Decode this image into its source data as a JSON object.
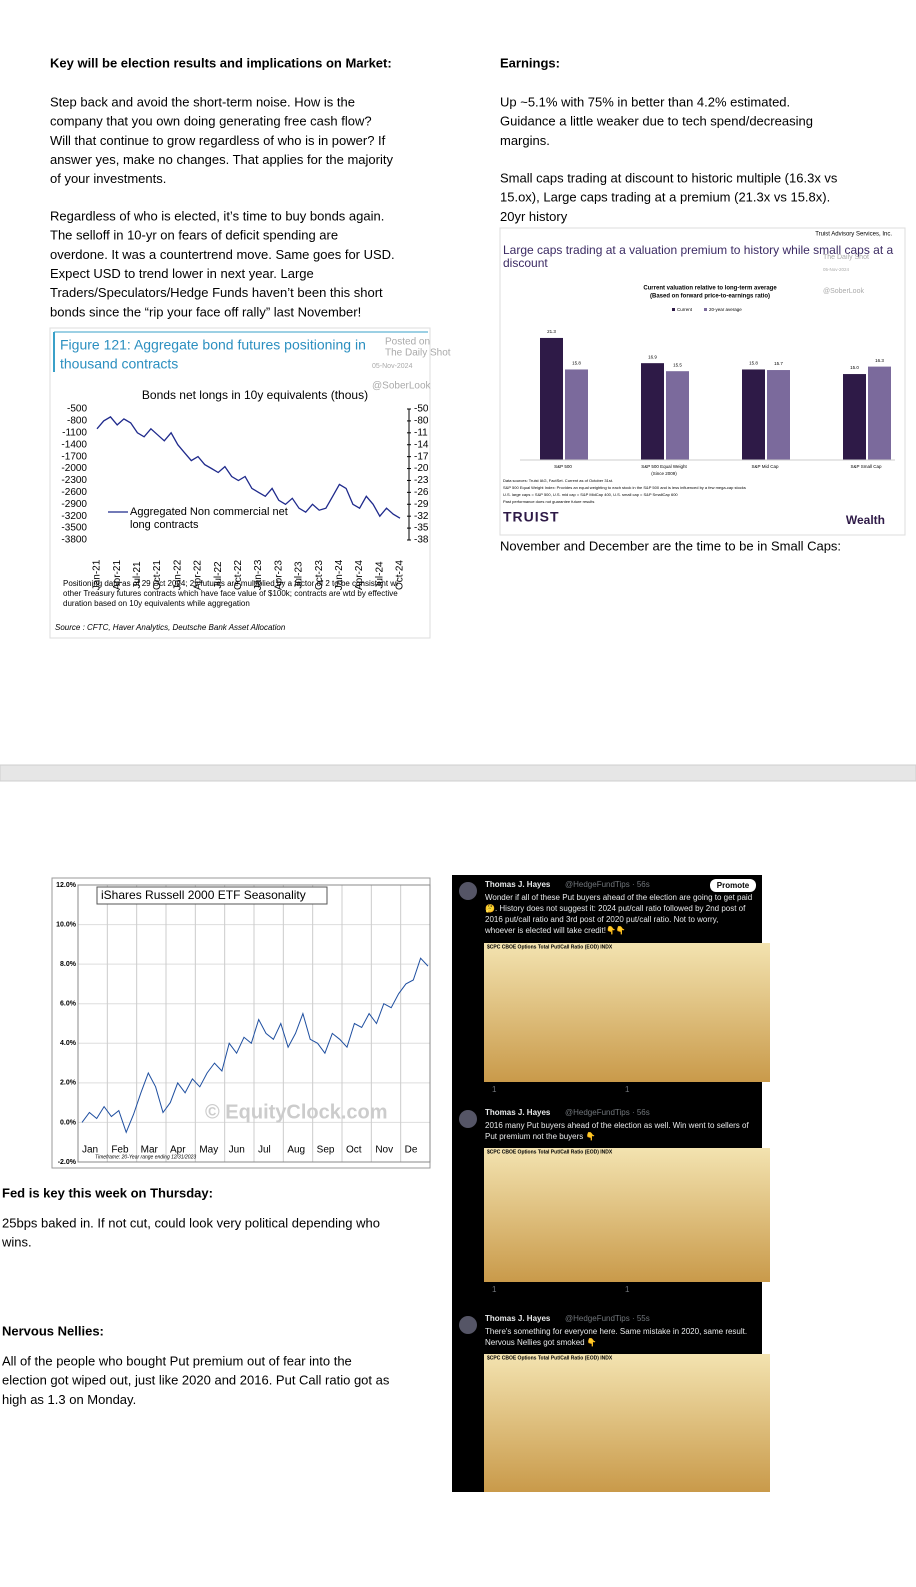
{
  "left_top": {
    "heading": "Key will be election results and implications on Market:",
    "paragraphs": [
      [
        "Step back and avoid the short-term noise.  How is the",
        "company that you own doing generating free cash flow?",
        "Will that continue to grow regardless of who is in power? If",
        "answer yes, make no changes.  That applies for the majority",
        "of your investments."
      ],
      [
        "Regardless of who is elected, it’s time to buy bonds again.",
        "The selloff in 10-yr on fears of deficit spending are",
        "overdone.  It was a countertrend move.  Same goes for USD.",
        "Expect USD to trend lower in next year.  Large",
        "Traders/Speculators/Hedge Funds haven’t been this short",
        "bonds since the “rip your face off rally” last November!"
      ]
    ]
  },
  "right_top": {
    "heading": "Earnings:",
    "paragraphs": [
      [
        "Up ~5.1% with 75% in better than 4.2% estimated.",
        "Guidance a little weaker due to tech spend/decreasing",
        "margins."
      ],
      [
        "Small caps trading at discount to historic multiple (16.3x vs",
        "15.ox), Large caps trading at a premium (21.3x vs 15.8x).",
        "20yr history"
      ]
    ],
    "caption": "November and December are the time to be in Small Caps:"
  },
  "bond_figure": {
    "title_lines": [
      "Figure 121: Aggregate bond futures positioning in",
      "thousand contracts"
    ],
    "watermark": [
      "Posted on",
      "The Daily Shot",
      "05-Nov-2024",
      "@SoberLook"
    ],
    "chart": {
      "type": "line",
      "title": "Bonds net longs in 10y equivalents (thous)",
      "ylim": [
        -3800,
        -500
      ],
      "yticks": [
        -500,
        -800,
        -1100,
        -1400,
        -1700,
        -2000,
        -2300,
        -2600,
        -2900,
        -3200,
        -3500,
        -3800
      ],
      "right_tick_labels": [
        "-50",
        "-80",
        "-11",
        "-14",
        "-17",
        "-20",
        "-23",
        "-26",
        "-29",
        "-32",
        "-35",
        "-38"
      ],
      "x_labels": [
        "Jan-21",
        "Apr-21",
        "Jul-21",
        "Oct-21",
        "Jan-22",
        "Apr-22",
        "Jul-22",
        "Oct-22",
        "Jan-23",
        "Apr-23",
        "Jul-23",
        "Oct-23",
        "Jan-24",
        "Apr-24",
        "Jul-24",
        "Oct-24"
      ],
      "legend_lines": [
        "Aggregated Non commercial net",
        "long contracts"
      ],
      "color": "#1f2a8c",
      "values": [
        -1000,
        -800,
        -700,
        -900,
        -750,
        -850,
        -1100,
        -1200,
        -1000,
        -1150,
        -1300,
        -1100,
        -1400,
        -1600,
        -1800,
        -1700,
        -1900,
        -2000,
        -2100,
        -1950,
        -2200,
        -2300,
        -2200,
        -2500,
        -2600,
        -2700,
        -2500,
        -2800,
        -2900,
        -2750,
        -3000,
        -3100,
        -2900,
        -3050,
        -3000,
        -2700,
        -2400,
        -2500,
        -2900,
        -3000,
        -2700,
        -2900,
        -3200,
        -3000,
        -3150,
        -3250
      ]
    },
    "notes": [
      "Positioning data as of 29 Oct 2024; 2y futures are multiplied by a factor of 2 to be consistent wi",
      "other Treasury futures contracts which have face value of $100k; contracts are wtd by effective",
      "duration based on 10y equivalents while aggregation"
    ],
    "source": "Source : CFTC, Haver Analytics, Deutsche Bank Asset Allocation"
  },
  "valuation_figure": {
    "header": "Truist Advisory Services, Inc.",
    "title_lines": [
      "Large caps trading at a valuation premium to history while small caps at a",
      "discount"
    ],
    "watermark": [
      "The Daily Shot",
      "05-Nov-2024",
      "@SoberLook"
    ],
    "chart": {
      "type": "bar",
      "subtitle_lines": [
        "Current valuation relative to long-term average",
        "(Based on forward price-to-earnings ratio)"
      ],
      "categories": [
        "S&P 500",
        "S&P 500 Equal Weight",
        "S&P Mid Cap",
        "S&P Small Cap"
      ],
      "category_notes": [
        null,
        "(Since 2009)",
        null,
        null
      ],
      "series": [
        {
          "name": "Current",
          "color": "#2e1a47",
          "values": [
            21.3,
            16.9,
            15.8,
            15.0
          ],
          "value_labels": [
            "21.3",
            "16.9",
            "15.8",
            "15.0"
          ]
        },
        {
          "name": "20-year average",
          "color": "#7b6a9c",
          "values": [
            15.8,
            15.5,
            15.7,
            16.3
          ],
          "value_labels": [
            "15.8",
            "15.5",
            "15.7",
            "16.3"
          ]
        }
      ]
    },
    "footnotes": [
      "Data sources: Truist IAG, FactSet. Current as of October 31st.",
      "S&P 500 Equal Weight Index: Provides an equal weighting to each stock in the S&P 500 and is less influenced by a few mega-cap stocks",
      "U.S. large caps = S&P 500, U.S. mid cap = S&P MidCap 400, U.S. small cap = S&P SmallCap 600",
      "Past performance does not guarantee future results"
    ],
    "brand": "TRUIST",
    "brand_right": "Wealth"
  },
  "seasonality_figure": {
    "chart": {
      "type": "line",
      "title": "iShares Russell 2000 ETF Seasonality",
      "color": "#1f4fa0",
      "ylim": [
        -2,
        12
      ],
      "yticks": [
        {
          "value": 12,
          "label": "12.0%"
        },
        {
          "value": 10,
          "label": "10.0%"
        },
        {
          "value": 8,
          "label": "8.0%"
        },
        {
          "value": 6,
          "label": "6.0%"
        },
        {
          "value": 4,
          "label": "4.0%"
        },
        {
          "value": 2,
          "label": "2.0%"
        },
        {
          "value": 0,
          "label": "0.0%"
        },
        {
          "value": -2,
          "label": "-2.0%"
        }
      ],
      "categories": [
        "Jan",
        "Feb",
        "Mar",
        "Apr",
        "May",
        "Jun",
        "Jul",
        "Aug",
        "Sep",
        "Oct",
        "Nov",
        "De"
      ],
      "values": [
        0,
        0.5,
        0.2,
        0.8,
        0.3,
        0.6,
        -0.5,
        0.4,
        1.5,
        2.5,
        1.8,
        0.5,
        1.0,
        2.0,
        1.5,
        2.2,
        1.8,
        2.5,
        3.0,
        2.6,
        4.0,
        3.5,
        4.3,
        4.0,
        5.2,
        4.5,
        4.2,
        5.0,
        3.8,
        4.5,
        5.5,
        4.2,
        4.0,
        3.5,
        4.5,
        4.2,
        3.8,
        5.0,
        4.8,
        5.5,
        5.0,
        6.0,
        5.8,
        6.5,
        7.0,
        7.2,
        8.3,
        7.9
      ]
    },
    "watermark": "© EquityClock.com",
    "timeframe": "Timeframe: 20-Year range ending 12/31/2023"
  },
  "left_bottom": [
    {
      "heading": "Fed is key this week on Thursday:",
      "lines": [
        "25bps baked in.  If not cut, could look very political depending who",
        "wins."
      ]
    },
    {
      "heading": "Nervous Nellies:",
      "lines": [
        "All of the people who bought Put premium out of fear into the",
        "election got wiped out, just like 2020 and 2016. Put Call ratio got as",
        "high as 1.3 on Monday."
      ]
    }
  ],
  "tweets": [
    {
      "name": "Thomas J. Hayes",
      "handle": "@HedgeFundTips · 56s",
      "button": "Promote",
      "lines": [
        "Wonder if all of these Put buyers ahead of the election are going to get paid",
        "🤔. History does not suggest it: 2024 put/call ratio followed by 2nd post of",
        "2016 put/call ratio and 3rd post of 2020 put/call ratio. Not to worry,",
        "whoever is elected will take credit!👇👇"
      ],
      "chart_header": "$CPC CBOE Options Total Put/Call Ratio (EOD) INDX",
      "replies": "1",
      "likes": "1"
    },
    {
      "name": "Thomas J. Hayes",
      "handle": "@HedgeFundTips · 56s",
      "lines": [
        "2016 many Put buyers ahead of the election as well. Win went to sellers of",
        "Put premium not the buyers 👇"
      ],
      "chart_header": "$CPC CBOE Options Total Put/Call Ratio (EOD) INDX",
      "replies": "1",
      "likes": "1"
    },
    {
      "name": "Thomas J. Hayes",
      "handle": "@HedgeFundTips · 55s",
      "lines": [
        "There's something for everyone here. Same mistake in 2020, same result.",
        "Nervous Nellies got smoked 👇"
      ],
      "chart_header": "$CPC CBOE Options Total Put/Call Ratio (EOD) INDX"
    }
  ]
}
